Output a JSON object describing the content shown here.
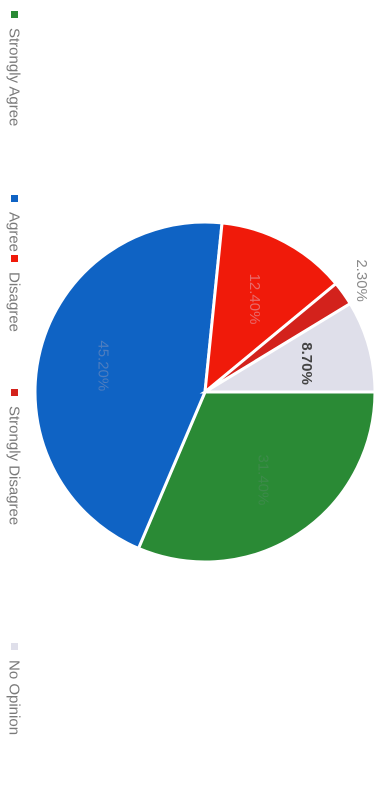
{
  "chart_data": {
    "type": "pie",
    "legend_position": "bottom",
    "rotation": "rotated 90 degrees clockwise",
    "slices": [
      {
        "label": "Strongly Agree",
        "value": 31.4,
        "value_label": "31.40%",
        "color": "#2a8a35",
        "label_color": "#3d8a4a"
      },
      {
        "label": "Agree",
        "value": 45.2,
        "value_label": "45.20%",
        "color": "#0f63c4",
        "label_color": "#4d7dbf"
      },
      {
        "label": "Disagree",
        "value": 12.4,
        "value_label": "12.40%",
        "color": "#f01a0a",
        "label_color": "#e86a6a"
      },
      {
        "label": "Strongly Disagree",
        "value": 2.3,
        "value_label": "2.30%",
        "color": "#d3221c",
        "label_color": "#8a8a8a"
      },
      {
        "label": "No Opinion",
        "value": 8.7,
        "value_label": "8.70%",
        "color": "#dfdfea",
        "label_color": "#444444"
      }
    ]
  }
}
